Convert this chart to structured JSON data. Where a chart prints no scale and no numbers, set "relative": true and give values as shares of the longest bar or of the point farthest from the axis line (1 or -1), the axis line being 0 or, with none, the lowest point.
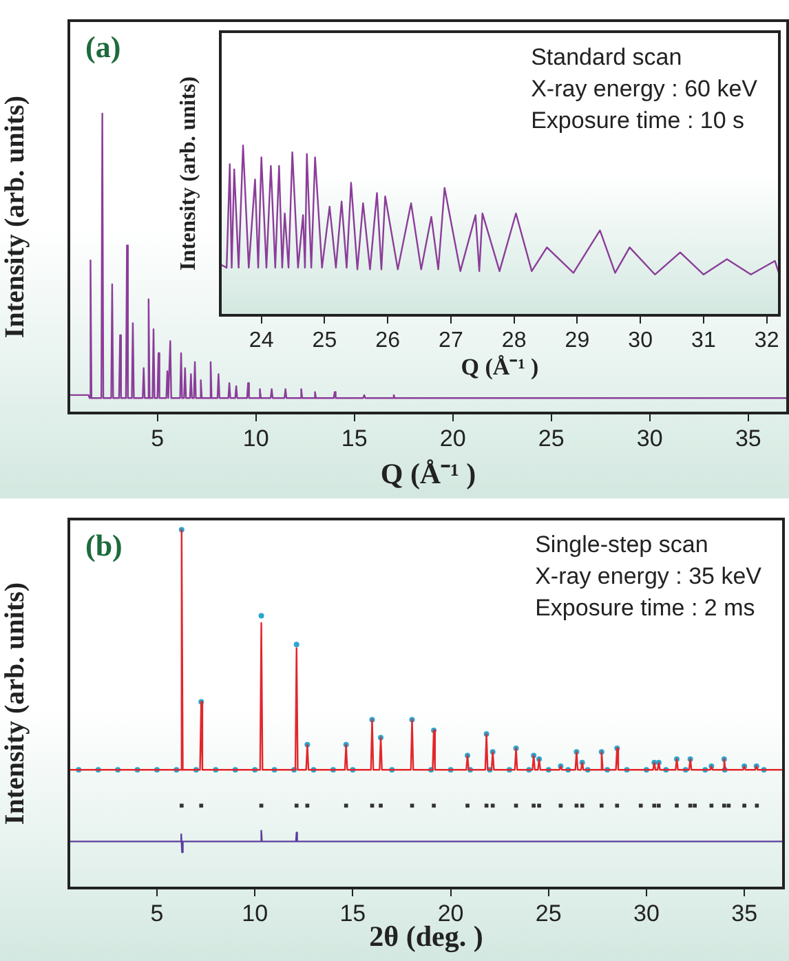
{
  "chart_data": [
    {
      "type": "line",
      "title": "(a)",
      "xlabel": "Q (Å⁻¹ )",
      "ylabel": "Intensity (arb. units)",
      "relative": true,
      "xlim": [
        0.5,
        37
      ],
      "xticks": [
        5,
        10,
        15,
        20,
        25,
        30,
        35
      ],
      "grid": false,
      "legend": false,
      "marker": "none",
      "series": [
        {
          "color": "#8b3d99",
          "x": [
            0.5,
            1.5,
            1.55,
            1.6,
            1.65,
            2.15,
            2.2,
            2.25,
            2.65,
            2.7,
            2.75,
            3.05,
            3.1,
            3.15,
            3.4,
            3.45,
            3.5,
            3.7,
            3.75,
            3.8,
            4.25,
            4.3,
            4.35,
            4.5,
            4.55,
            4.6,
            4.75,
            4.8,
            4.85,
            5.0,
            5.05,
            5.1,
            5.45,
            5.5,
            5.55,
            5.6,
            5.65,
            5.7,
            6.15,
            6.2,
            6.25,
            6.35,
            6.4,
            6.45,
            6.65,
            6.7,
            6.75,
            6.85,
            6.9,
            6.95,
            7.15,
            7.2,
            7.25,
            7.65,
            7.7,
            7.75,
            8.05,
            8.1,
            8.15,
            8.6,
            8.65,
            8.7,
            8.95,
            9.0,
            9.05,
            9.55,
            9.6,
            9.65,
            10.15,
            10.2,
            10.25,
            10.75,
            10.8,
            10.85,
            11.45,
            11.5,
            11.55,
            12.25,
            12.3,
            12.35,
            12.95,
            13.0,
            13.05,
            13.95,
            14.0,
            14.05,
            15.45,
            15.5,
            15.55,
            16.95,
            17.0,
            17.05,
            37
          ],
          "values": [
            0.06,
            0.06,
            0.05,
            0.51,
            0.05,
            0.05,
            1.0,
            0.05,
            0.05,
            0.43,
            0.05,
            0.05,
            0.26,
            0.05,
            0.05,
            0.56,
            0.05,
            0.05,
            0.3,
            0.05,
            0.05,
            0.15,
            0.05,
            0.05,
            0.38,
            0.05,
            0.05,
            0.28,
            0.05,
            0.05,
            0.2,
            0.05,
            0.05,
            0.14,
            0.05,
            0.05,
            0.24,
            0.05,
            0.05,
            0.2,
            0.05,
            0.05,
            0.15,
            0.05,
            0.05,
            0.13,
            0.05,
            0.05,
            0.17,
            0.05,
            0.05,
            0.11,
            0.05,
            0.05,
            0.17,
            0.05,
            0.05,
            0.13,
            0.05,
            0.05,
            0.1,
            0.05,
            0.05,
            0.09,
            0.05,
            0.05,
            0.1,
            0.05,
            0.05,
            0.08,
            0.05,
            0.05,
            0.08,
            0.05,
            0.05,
            0.08,
            0.05,
            0.05,
            0.08,
            0.05,
            0.05,
            0.07,
            0.05,
            0.05,
            0.07,
            0.05,
            0.05,
            0.06,
            0.05,
            0.05,
            0.06,
            0.05,
            0.05
          ]
        }
      ]
    },
    {
      "type": "line",
      "xlabel": "Q (Å⁻¹ )",
      "ylabel": "Intensity (arb. units)",
      "relative": true,
      "xlim": [
        23.35,
        32.2
      ],
      "xticks": [
        24,
        25,
        26,
        27,
        28,
        29,
        30,
        31,
        32
      ],
      "grid": false,
      "legend": false,
      "marker": "none",
      "annotations": [
        "Standard scan",
        "X-ray energy : 60 keV",
        "Exposure time : 10 s"
      ],
      "series": [
        {
          "color": "#8b3d99",
          "x": [
            23.35,
            23.45,
            23.5,
            23.53,
            23.57,
            23.64,
            23.71,
            23.8,
            23.9,
            23.95,
            24.0,
            24.08,
            24.15,
            24.22,
            24.28,
            24.33,
            24.37,
            24.43,
            24.49,
            24.58,
            24.66,
            24.69,
            24.72,
            24.79,
            24.85,
            24.96,
            25.08,
            25.18,
            25.27,
            25.35,
            25.42,
            25.52,
            25.61,
            25.72,
            25.83,
            25.9,
            25.96,
            26.16,
            26.37,
            26.53,
            26.69,
            26.8,
            26.9,
            27.15,
            27.39,
            27.45,
            27.5,
            27.77,
            28.03,
            28.28,
            28.52,
            28.94,
            29.36,
            29.6,
            29.83,
            30.23,
            30.63,
            31.0,
            31.37,
            31.75,
            32.13,
            32.2
          ],
          "values": [
            0.3,
            0.28,
            0.89,
            0.28,
            0.86,
            0.28,
            1.0,
            0.28,
            0.8,
            0.28,
            0.93,
            0.28,
            0.88,
            0.28,
            0.88,
            0.28,
            0.6,
            0.28,
            0.96,
            0.28,
            0.59,
            0.28,
            0.95,
            0.28,
            0.93,
            0.28,
            0.64,
            0.28,
            0.67,
            0.28,
            0.78,
            0.27,
            0.66,
            0.27,
            0.72,
            0.27,
            0.7,
            0.27,
            0.66,
            0.27,
            0.58,
            0.27,
            0.75,
            0.26,
            0.59,
            0.26,
            0.6,
            0.26,
            0.6,
            0.26,
            0.4,
            0.25,
            0.5,
            0.25,
            0.4,
            0.24,
            0.37,
            0.24,
            0.33,
            0.24,
            0.32,
            0.24
          ]
        }
      ]
    },
    {
      "type": "line",
      "title": "(b)",
      "xlabel": "2θ (deg. )",
      "ylabel": "Intensity (arb. units)",
      "relative": true,
      "xlim": [
        0.5,
        37
      ],
      "xticks": [
        5,
        10,
        15,
        20,
        25,
        30,
        35
      ],
      "grid": false,
      "legend": false,
      "marker": "none",
      "annotations": [
        "Single-step scan",
        "X-ray energy : 35 keV",
        "Exposure time : 2 ms"
      ],
      "series": [
        {
          "type": "line",
          "color": "#e3262b",
          "x": [
            0.5,
            6.2,
            6.26,
            6.32,
            7.2,
            7.26,
            7.32,
            10.27,
            10.33,
            10.39,
            12.07,
            12.13,
            12.19,
            12.62,
            12.68,
            12.74,
            14.6,
            14.66,
            14.72,
            15.93,
            15.99,
            16.05,
            16.37,
            16.43,
            16.49,
            17.97,
            18.03,
            18.09,
            19.08,
            19.14,
            19.2,
            20.8,
            20.86,
            20.92,
            21.77,
            21.83,
            21.89,
            22.09,
            22.15,
            22.21,
            23.28,
            23.34,
            23.4,
            24.18,
            24.24,
            24.3,
            24.46,
            24.52,
            24.58,
            25.56,
            25.62,
            25.68,
            26.37,
            26.43,
            26.49,
            26.66,
            26.72,
            26.78,
            27.65,
            27.71,
            27.77,
            28.44,
            28.5,
            28.56,
            30.34,
            30.4,
            30.46,
            30.57,
            30.63,
            30.69,
            31.49,
            31.55,
            31.61,
            32.18,
            32.24,
            32.3,
            33.26,
            33.32,
            33.38,
            33.91,
            33.97,
            34.03,
            34.94,
            35.0,
            35.06,
            35.56,
            35.62,
            35.68,
            37
          ],
          "values": [
            0.33,
            0.33,
            1.0,
            0.33,
            0.33,
            0.52,
            0.33,
            0.33,
            0.74,
            0.33,
            0.33,
            0.67,
            0.33,
            0.33,
            0.4,
            0.33,
            0.33,
            0.4,
            0.33,
            0.33,
            0.47,
            0.33,
            0.33,
            0.42,
            0.33,
            0.33,
            0.47,
            0.33,
            0.33,
            0.44,
            0.33,
            0.33,
            0.37,
            0.33,
            0.33,
            0.43,
            0.33,
            0.33,
            0.38,
            0.33,
            0.33,
            0.39,
            0.33,
            0.33,
            0.37,
            0.33,
            0.33,
            0.36,
            0.33,
            0.33,
            0.34,
            0.33,
            0.33,
            0.38,
            0.33,
            0.33,
            0.35,
            0.33,
            0.33,
            0.38,
            0.33,
            0.33,
            0.39,
            0.33,
            0.33,
            0.35,
            0.33,
            0.33,
            0.35,
            0.33,
            0.33,
            0.36,
            0.33,
            0.33,
            0.36,
            0.33,
            0.33,
            0.34,
            0.33,
            0.33,
            0.36,
            0.33,
            0.33,
            0.34,
            0.33,
            0.33,
            0.34,
            0.33,
            0.33
          ]
        },
        {
          "type": "scatter",
          "marker": "circle",
          "color": "#2aa7cf",
          "x": [
            6.26,
            7.26,
            10.33,
            12.13,
            12.68,
            14.66,
            15.99,
            16.43,
            18.03,
            19.14,
            20.86,
            21.83,
            22.15,
            23.34,
            24.24,
            24.52,
            25.62,
            26.43,
            26.72,
            27.71,
            28.5,
            30.4,
            30.63,
            31.55,
            32.24,
            33.32,
            33.97,
            35.0,
            35.62,
            1,
            2,
            3,
            4,
            5,
            6,
            7,
            8,
            9,
            10,
            11,
            12,
            13,
            14,
            15,
            17,
            19,
            20,
            21,
            22,
            23,
            24,
            25,
            26,
            27,
            28,
            29,
            30,
            31,
            32,
            33,
            34,
            36
          ],
          "values": [
            1.0,
            0.52,
            0.76,
            0.68,
            0.4,
            0.4,
            0.47,
            0.42,
            0.47,
            0.44,
            0.37,
            0.43,
            0.38,
            0.39,
            0.37,
            0.36,
            0.34,
            0.38,
            0.35,
            0.38,
            0.39,
            0.35,
            0.35,
            0.36,
            0.36,
            0.34,
            0.36,
            0.34,
            0.34,
            0.33,
            0.33,
            0.33,
            0.33,
            0.33,
            0.33,
            0.33,
            0.33,
            0.33,
            0.33,
            0.33,
            0.33,
            0.33,
            0.33,
            0.33,
            0.33,
            0.33,
            0.33,
            0.33,
            0.33,
            0.33,
            0.33,
            0.33,
            0.33,
            0.33,
            0.33,
            0.33,
            0.33,
            0.33,
            0.33,
            0.33,
            0.33,
            0.33
          ]
        },
        {
          "type": "scatter",
          "marker": "square",
          "color": "#333333",
          "x": [
            6.26,
            7.26,
            10.33,
            12.13,
            12.68,
            14.66,
            15.99,
            16.43,
            18.03,
            19.14,
            20.86,
            21.83,
            22.15,
            23.34,
            24.24,
            24.52,
            25.62,
            26.43,
            26.72,
            27.71,
            28.5,
            29.71,
            30.4,
            30.63,
            31.55,
            32.24,
            32.47,
            33.32,
            33.97,
            34.2,
            35.0,
            35.64
          ],
          "values": [
            0.23,
            0.23,
            0.23,
            0.23,
            0.23,
            0.23,
            0.23,
            0.23,
            0.23,
            0.23,
            0.23,
            0.23,
            0.23,
            0.23,
            0.23,
            0.23,
            0.23,
            0.23,
            0.23,
            0.23,
            0.23,
            0.23,
            0.23,
            0.23,
            0.23,
            0.23,
            0.23,
            0.23,
            0.23,
            0.23,
            0.23,
            0.23
          ]
        },
        {
          "type": "line",
          "color": "#5b3f9f",
          "x": [
            0.5,
            6.2,
            6.24,
            6.28,
            6.32,
            10.3,
            10.33,
            10.36,
            12.1,
            12.13,
            12.16,
            37
          ],
          "values": [
            0.13,
            0.13,
            0.15,
            0.1,
            0.13,
            0.13,
            0.16,
            0.13,
            0.13,
            0.155,
            0.13,
            0.13
          ]
        }
      ]
    }
  ]
}
